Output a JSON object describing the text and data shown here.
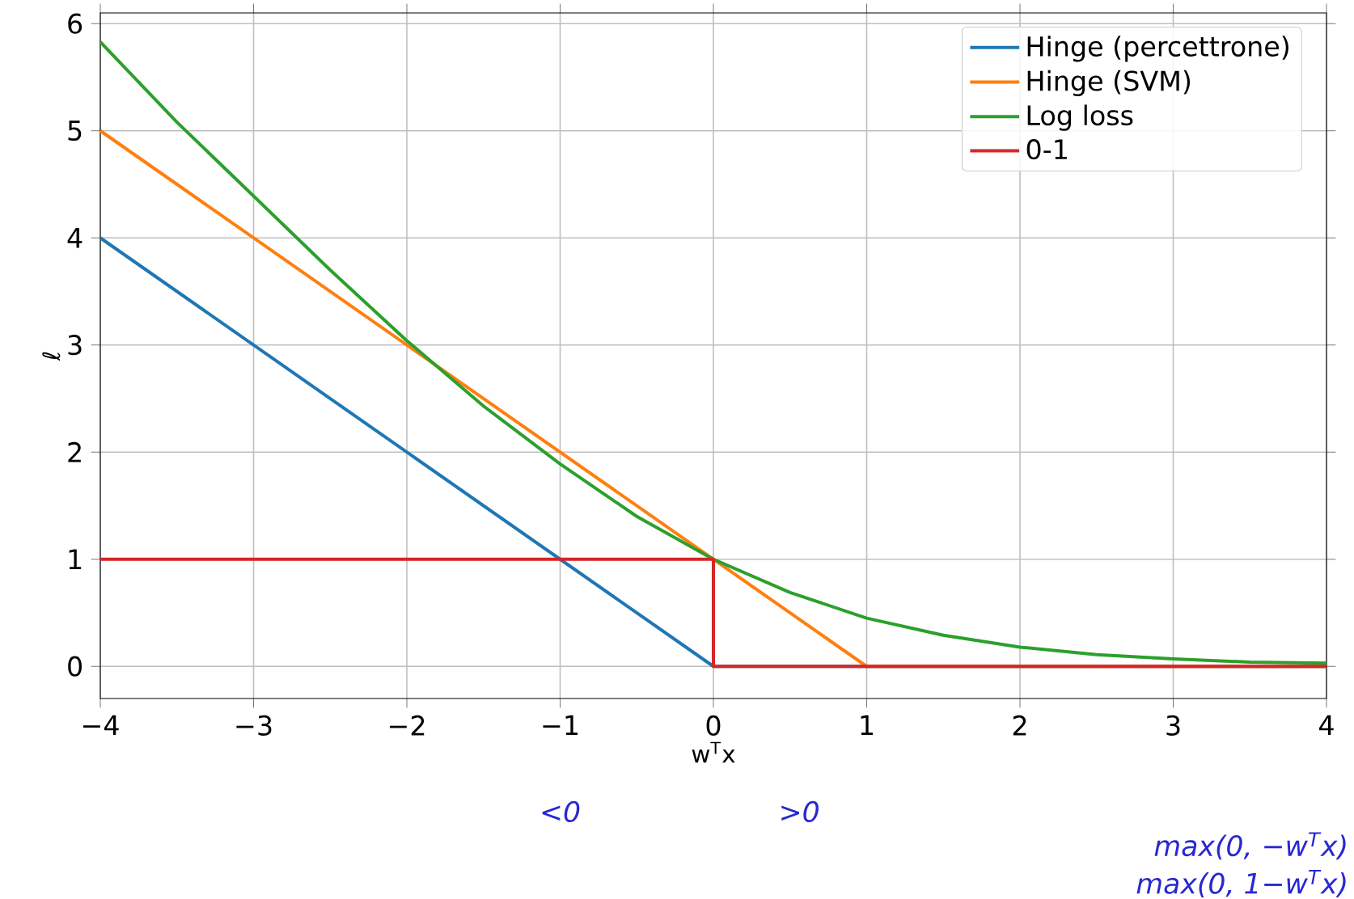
{
  "chart_data": {
    "type": "line",
    "xlabel": "w$^{T}$x",
    "ylabel": "ℓ",
    "series": [
      {
        "name": "Hinge (percettrone)",
        "color": "#1f77b4",
        "x": [
          -4,
          0,
          4
        ],
        "values": [
          4,
          0,
          0
        ]
      },
      {
        "name": "Hinge (SVM)",
        "color": "#ff7f0e",
        "x": [
          -4,
          1,
          4
        ],
        "values": [
          5,
          0,
          0
        ]
      },
      {
        "name": "Log loss",
        "color": "#2ca02c",
        "x": [
          -4,
          -3.5,
          -3,
          -2.5,
          -2,
          -1.5,
          -1,
          -0.5,
          0,
          0.5,
          1,
          1.5,
          2,
          2.5,
          3,
          3.5,
          4
        ],
        "values": [
          5.83,
          5.08,
          4.39,
          3.7,
          3.04,
          2.43,
          1.89,
          1.4,
          1.0,
          0.69,
          0.45,
          0.29,
          0.18,
          0.11,
          0.07,
          0.04,
          0.03
        ]
      },
      {
        "name": "0-1",
        "color": "#d62728",
        "x": [
          -4,
          0,
          0,
          4
        ],
        "values": [
          1,
          1,
          0,
          0
        ]
      }
    ],
    "xlim": [
      -4,
      4
    ],
    "ylim": [
      -0.3,
      6.1
    ],
    "xticks": [
      {
        "value": -4,
        "label": "−4"
      },
      {
        "value": -3,
        "label": "−3"
      },
      {
        "value": -2,
        "label": "−2"
      },
      {
        "value": -1,
        "label": "−1"
      },
      0,
      1,
      2,
      3,
      4
    ],
    "yticks": [
      0,
      1,
      2,
      3,
      4,
      5,
      6
    ],
    "annotations": [
      "<0",
      ">0",
      "max(0, −w$^{T}$x)",
      "max(0, 1−w$^{T}$x)"
    ],
    "grid": true,
    "legend": "top right",
    "line_style": "solid",
    "marker": "none"
  }
}
